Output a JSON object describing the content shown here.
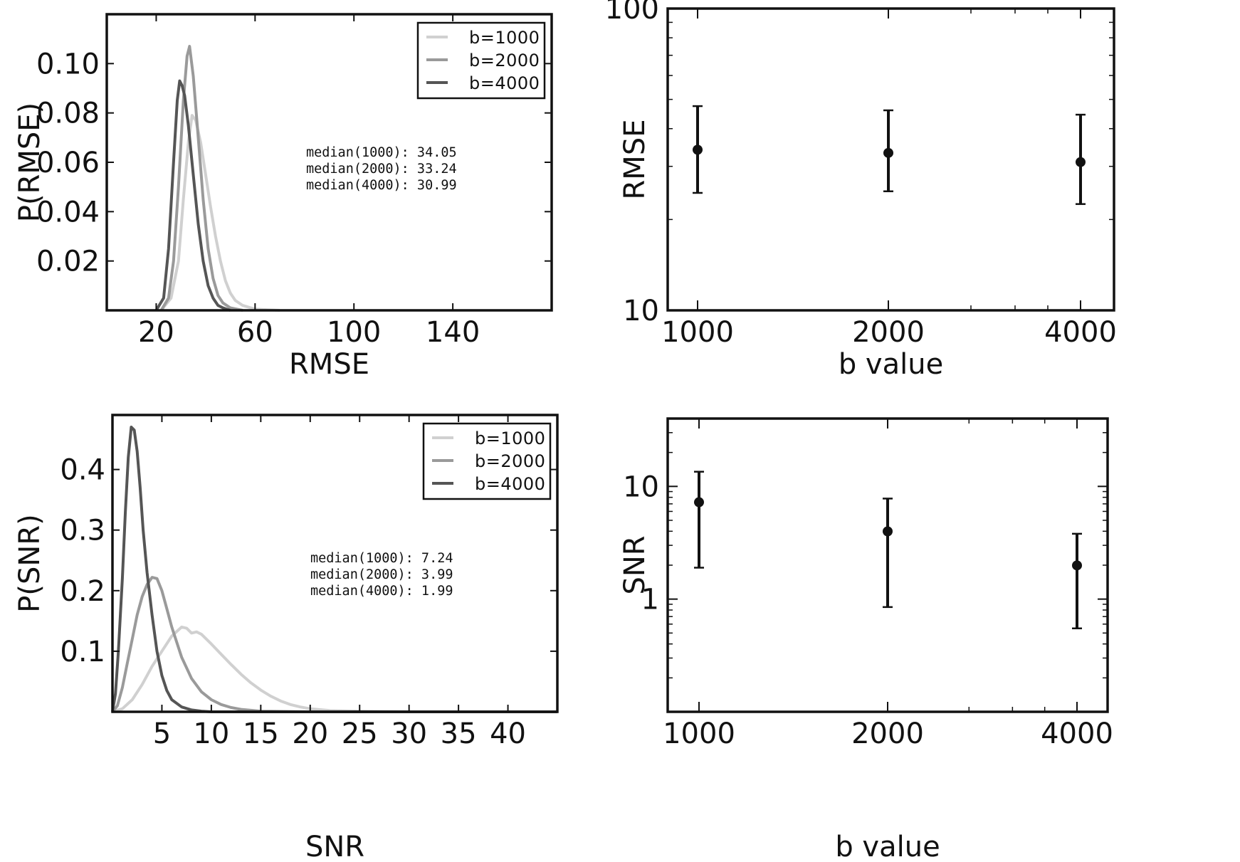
{
  "colors": {
    "b1000": "#d0d0d0",
    "b2000": "#9a9a9a",
    "b4000": "#555555",
    "errorbar": "#111111"
  },
  "chart_data": [
    {
      "type": "line",
      "xlabel": "RMSE",
      "ylabel": "P(RMSE)",
      "xlim": [
        0,
        180
      ],
      "ylim": [
        0,
        0.12
      ],
      "xticks": [
        20,
        60,
        100,
        140
      ],
      "yticks": [
        0.02,
        0.04,
        0.06,
        0.08,
        0.1
      ],
      "ytick_labels": [
        "0.02",
        "0.04",
        "0.06",
        "0.08",
        "0.10"
      ],
      "legend_position": "top-right",
      "series": [
        {
          "name": "b=1000",
          "color_key": "b1000",
          "x": [
            22,
            26,
            29,
            31,
            33,
            34.5,
            36,
            38,
            40,
            42,
            44,
            46,
            48,
            50,
            52,
            55,
            60,
            70
          ],
          "y": [
            0,
            0.005,
            0.02,
            0.045,
            0.068,
            0.079,
            0.077,
            0.068,
            0.055,
            0.042,
            0.03,
            0.02,
            0.012,
            0.007,
            0.004,
            0.002,
            0.0005,
            0
          ]
        },
        {
          "name": "b=2000",
          "color_key": "b2000",
          "x": [
            22,
            25,
            27,
            29,
            31,
            32.5,
            33.5,
            35,
            37,
            39,
            41,
            43,
            45,
            47,
            50,
            55
          ],
          "y": [
            0,
            0.005,
            0.02,
            0.05,
            0.085,
            0.103,
            0.107,
            0.095,
            0.07,
            0.045,
            0.025,
            0.013,
            0.006,
            0.003,
            0.001,
            0
          ]
        },
        {
          "name": "b=4000",
          "color_key": "b4000",
          "x": [
            20,
            23,
            25,
            27,
            28.5,
            29.5,
            30.5,
            31.5,
            33,
            35,
            37,
            39,
            41,
            43,
            45,
            47,
            50
          ],
          "y": [
            0,
            0.005,
            0.025,
            0.06,
            0.085,
            0.093,
            0.091,
            0.087,
            0.075,
            0.055,
            0.035,
            0.02,
            0.01,
            0.005,
            0.002,
            0.001,
            0
          ]
        }
      ],
      "annotations": [
        "median(1000): 34.05",
        "median(2000): 33.24",
        "median(4000): 30.99"
      ]
    },
    {
      "type": "scatter",
      "xlabel": "b value",
      "ylabel": "RMSE",
      "y_scale": "log",
      "ylim": [
        10,
        100
      ],
      "yticks": [
        10,
        100
      ],
      "ytick_labels": [
        "10",
        "100"
      ],
      "categories": [
        "1000",
        "2000",
        "4000"
      ],
      "values": [
        34.05,
        33.24,
        30.99
      ],
      "err_low": [
        24.5,
        24.8,
        22.5
      ],
      "err_high": [
        47.5,
        46.0,
        44.5
      ]
    },
    {
      "type": "line",
      "xlabel": "SNR",
      "ylabel": "P(SNR)",
      "xlim": [
        0,
        45
      ],
      "ylim": [
        0,
        0.49
      ],
      "xticks": [
        5,
        10,
        15,
        20,
        25,
        30,
        35,
        40
      ],
      "yticks": [
        0.1,
        0.2,
        0.3,
        0.4
      ],
      "ytick_labels": [
        "0.1",
        "0.2",
        "0.3",
        "0.4"
      ],
      "legend_position": "top-right",
      "series": [
        {
          "name": "b=1000",
          "color_key": "b1000",
          "x": [
            0,
            1,
            2,
            3,
            4,
            5,
            6,
            7,
            7.5,
            8,
            8.5,
            9,
            10,
            11,
            12,
            13,
            14,
            15,
            16,
            17,
            18,
            19,
            20,
            22,
            25,
            30,
            35,
            45
          ],
          "y": [
            0,
            0.005,
            0.02,
            0.045,
            0.075,
            0.1,
            0.125,
            0.14,
            0.138,
            0.13,
            0.132,
            0.128,
            0.112,
            0.095,
            0.078,
            0.062,
            0.048,
            0.036,
            0.026,
            0.018,
            0.012,
            0.008,
            0.005,
            0.002,
            0.001,
            0,
            0,
            0
          ]
        },
        {
          "name": "b=2000",
          "color_key": "b2000",
          "x": [
            0,
            0.5,
            1,
            1.5,
            2,
            2.5,
            3,
            3.5,
            4,
            4.5,
            5,
            5.5,
            6,
            7,
            8,
            9,
            10,
            11,
            12,
            13,
            15,
            20,
            45
          ],
          "y": [
            0,
            0.01,
            0.04,
            0.08,
            0.12,
            0.16,
            0.19,
            0.21,
            0.222,
            0.22,
            0.2,
            0.17,
            0.14,
            0.09,
            0.055,
            0.033,
            0.02,
            0.012,
            0.007,
            0.004,
            0.001,
            0,
            0
          ]
        },
        {
          "name": "b=4000",
          "color_key": "b4000",
          "x": [
            0,
            0.3,
            0.6,
            1,
            1.3,
            1.6,
            1.9,
            2.2,
            2.5,
            2.8,
            3.1,
            3.5,
            4,
            4.5,
            5,
            5.5,
            6,
            7,
            8,
            9,
            10,
            12,
            45
          ],
          "y": [
            0,
            0.03,
            0.1,
            0.22,
            0.33,
            0.42,
            0.47,
            0.465,
            0.43,
            0.37,
            0.3,
            0.23,
            0.16,
            0.1,
            0.06,
            0.035,
            0.02,
            0.008,
            0.003,
            0.001,
            0,
            0,
            0
          ]
        }
      ],
      "annotations": [
        "median(1000): 7.24",
        "median(2000): 3.99",
        "median(4000): 1.99"
      ]
    },
    {
      "type": "scatter",
      "xlabel": "b value",
      "ylabel": "SNR",
      "y_scale": "log",
      "ylim": [
        0.1,
        40
      ],
      "yticks": [
        1,
        10
      ],
      "ytick_labels": [
        "1",
        "10"
      ],
      "categories": [
        "1000",
        "2000",
        "4000"
      ],
      "values": [
        7.24,
        3.99,
        1.99
      ],
      "err_low": [
        1.9,
        0.85,
        0.55
      ],
      "err_high": [
        13.5,
        7.8,
        3.8
      ]
    }
  ]
}
